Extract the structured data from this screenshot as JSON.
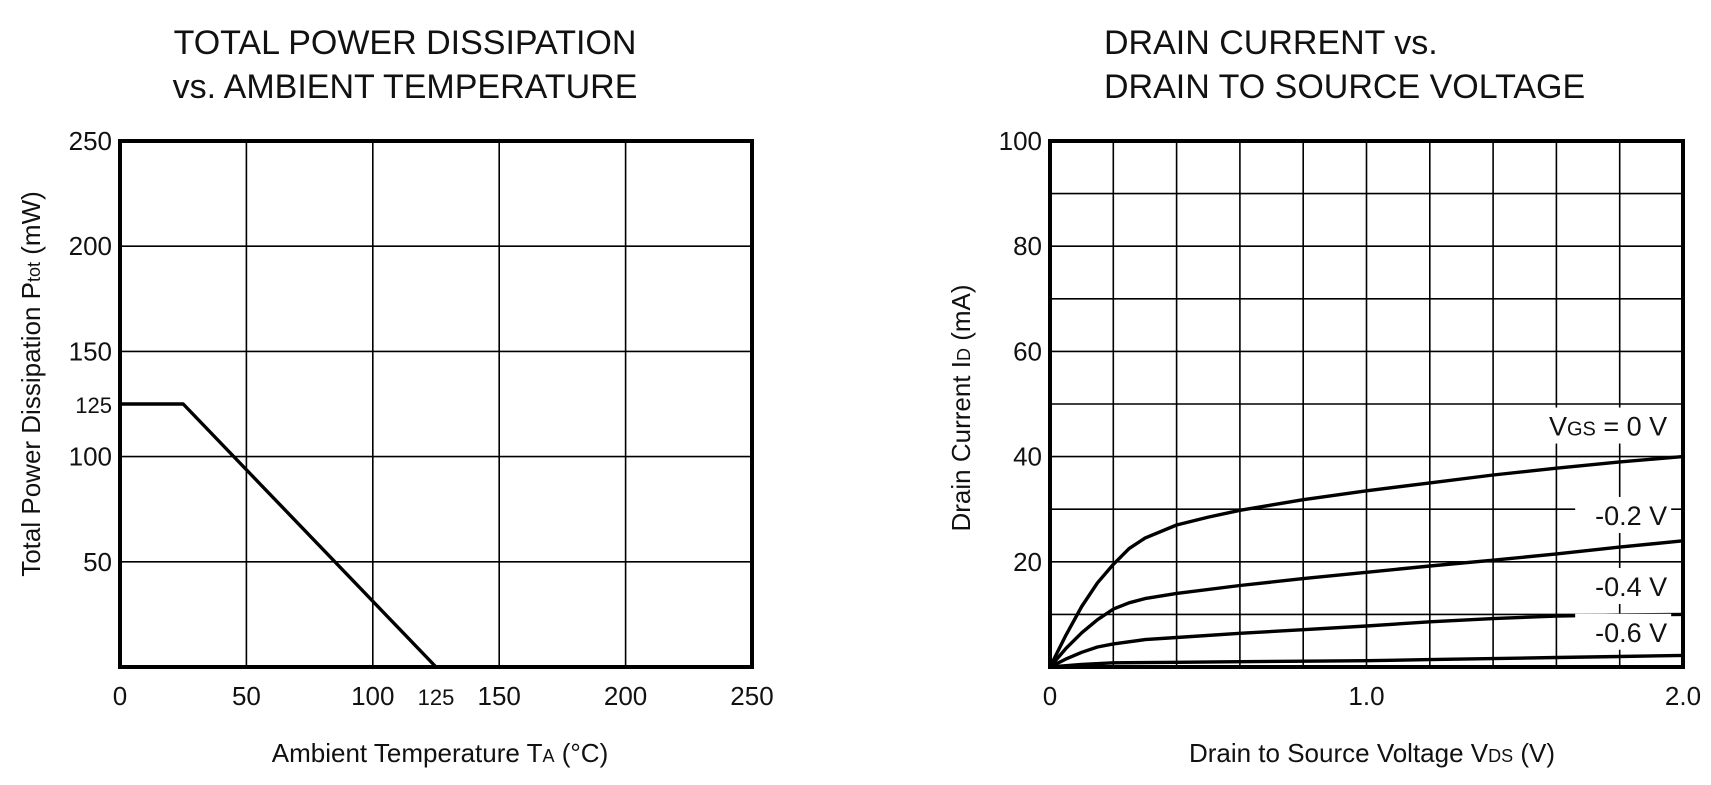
{
  "chart_data": [
    {
      "type": "line",
      "title": [
        "TOTAL POWER DISSIPATION",
        "vs. AMBIENT TEMPERATURE"
      ],
      "xlabel": {
        "main": "Ambient Temperature  T",
        "sub": "A",
        "unit": " (°C)"
      },
      "ylabel": {
        "main": "Total Power Dissipation  P",
        "sub": "tot",
        "unit": " (mW)"
      },
      "xlim": [
        0,
        250
      ],
      "ylim": [
        0,
        250
      ],
      "x_ticks": [
        {
          "value": 0,
          "label": "0"
        },
        {
          "value": 50,
          "label": "50"
        },
        {
          "value": 100,
          "label": "100"
        },
        {
          "value": 125,
          "label": "125",
          "small": true
        },
        {
          "value": 150,
          "label": "150"
        },
        {
          "value": 200,
          "label": "200"
        },
        {
          "value": 250,
          "label": "250"
        }
      ],
      "y_ticks": [
        {
          "value": 50,
          "label": "50"
        },
        {
          "value": 100,
          "label": "100"
        },
        {
          "value": 125,
          "label": "125",
          "small": true
        },
        {
          "value": 150,
          "label": "150"
        },
        {
          "value": 200,
          "label": "200"
        },
        {
          "value": 250,
          "label": "250"
        }
      ],
      "x_grid": [
        50,
        100,
        150,
        200
      ],
      "y_grid": [
        50,
        100,
        150,
        200
      ],
      "grid": true,
      "series": [
        {
          "x": [
            0,
            25,
            125
          ],
          "y": [
            125,
            125,
            0
          ]
        }
      ]
    },
    {
      "type": "line",
      "title": [
        "DRAIN CURRENT vs.",
        "DRAIN TO SOURCE VOLTAGE"
      ],
      "xlabel": {
        "main": "Drain to Source Voltage  V",
        "sub": "DS",
        "unit": " (V)"
      },
      "ylabel": {
        "main": "Drain Current  I",
        "sub": "D",
        "unit": " (mA)"
      },
      "xlim": [
        0,
        2.0
      ],
      "ylim": [
        0,
        100
      ],
      "x_ticks": [
        {
          "value": 0,
          "label": "0"
        },
        {
          "value": 1.0,
          "label": "1.0"
        },
        {
          "value": 2.0,
          "label": "2.0"
        }
      ],
      "y_ticks": [
        {
          "value": 20,
          "label": "20"
        },
        {
          "value": 40,
          "label": "40"
        },
        {
          "value": 60,
          "label": "60"
        },
        {
          "value": 80,
          "label": "80"
        },
        {
          "value": 100,
          "label": "100"
        }
      ],
      "x_grid": [
        0.2,
        0.4,
        0.6,
        0.8,
        1.0,
        1.2,
        1.4,
        1.6,
        1.8
      ],
      "y_grid": [
        10,
        20,
        30,
        40,
        50,
        60,
        70,
        80,
        90
      ],
      "grid": true,
      "series": [
        {
          "name": "V_GS = 0 V",
          "label_parts": [
            "V",
            "GS",
            " = 0 V"
          ],
          "label_at": [
            1.95,
            44
          ],
          "x": [
            0,
            0.05,
            0.1,
            0.15,
            0.2,
            0.25,
            0.3,
            0.4,
            0.5,
            0.6,
            0.8,
            1.0,
            1.2,
            1.4,
            1.6,
            1.8,
            2.0
          ],
          "y": [
            0,
            6,
            11.5,
            16,
            19.5,
            22.5,
            24.5,
            27,
            28.5,
            29.8,
            31.8,
            33.5,
            35,
            36.5,
            37.8,
            39,
            40
          ]
        },
        {
          "name": "-0.2 V",
          "label_parts": [
            "-0.2 V"
          ],
          "label_at": [
            1.95,
            27
          ],
          "x": [
            0,
            0.05,
            0.1,
            0.15,
            0.2,
            0.25,
            0.3,
            0.4,
            0.6,
            0.8,
            1.0,
            1.2,
            1.4,
            1.6,
            1.8,
            2.0
          ],
          "y": [
            0,
            3.5,
            6.5,
            9,
            11,
            12.2,
            13,
            14,
            15.5,
            16.8,
            18,
            19.2,
            20.3,
            21.5,
            22.8,
            24
          ]
        },
        {
          "name": "-0.4 V",
          "label_parts": [
            "-0.4 V"
          ],
          "label_at": [
            1.95,
            13.5
          ],
          "x": [
            0,
            0.05,
            0.1,
            0.15,
            0.2,
            0.3,
            0.4,
            0.6,
            0.8,
            1.0,
            1.2,
            1.4,
            1.6,
            1.8,
            2.0
          ],
          "y": [
            0,
            1.5,
            2.8,
            3.8,
            4.4,
            5.2,
            5.6,
            6.4,
            7.1,
            7.8,
            8.6,
            9.2,
            9.7,
            9.9,
            10
          ]
        },
        {
          "name": "-0.6 V",
          "label_parts": [
            "-0.6 V"
          ],
          "label_at": [
            1.95,
            4.8
          ],
          "x": [
            0,
            0.1,
            0.2,
            0.4,
            0.6,
            0.8,
            1.0,
            1.2,
            1.4,
            1.6,
            1.8,
            2.0
          ],
          "y": [
            0,
            0.5,
            0.8,
            0.9,
            1.0,
            1.1,
            1.2,
            1.4,
            1.6,
            1.8,
            2.0,
            2.2
          ]
        }
      ]
    }
  ]
}
